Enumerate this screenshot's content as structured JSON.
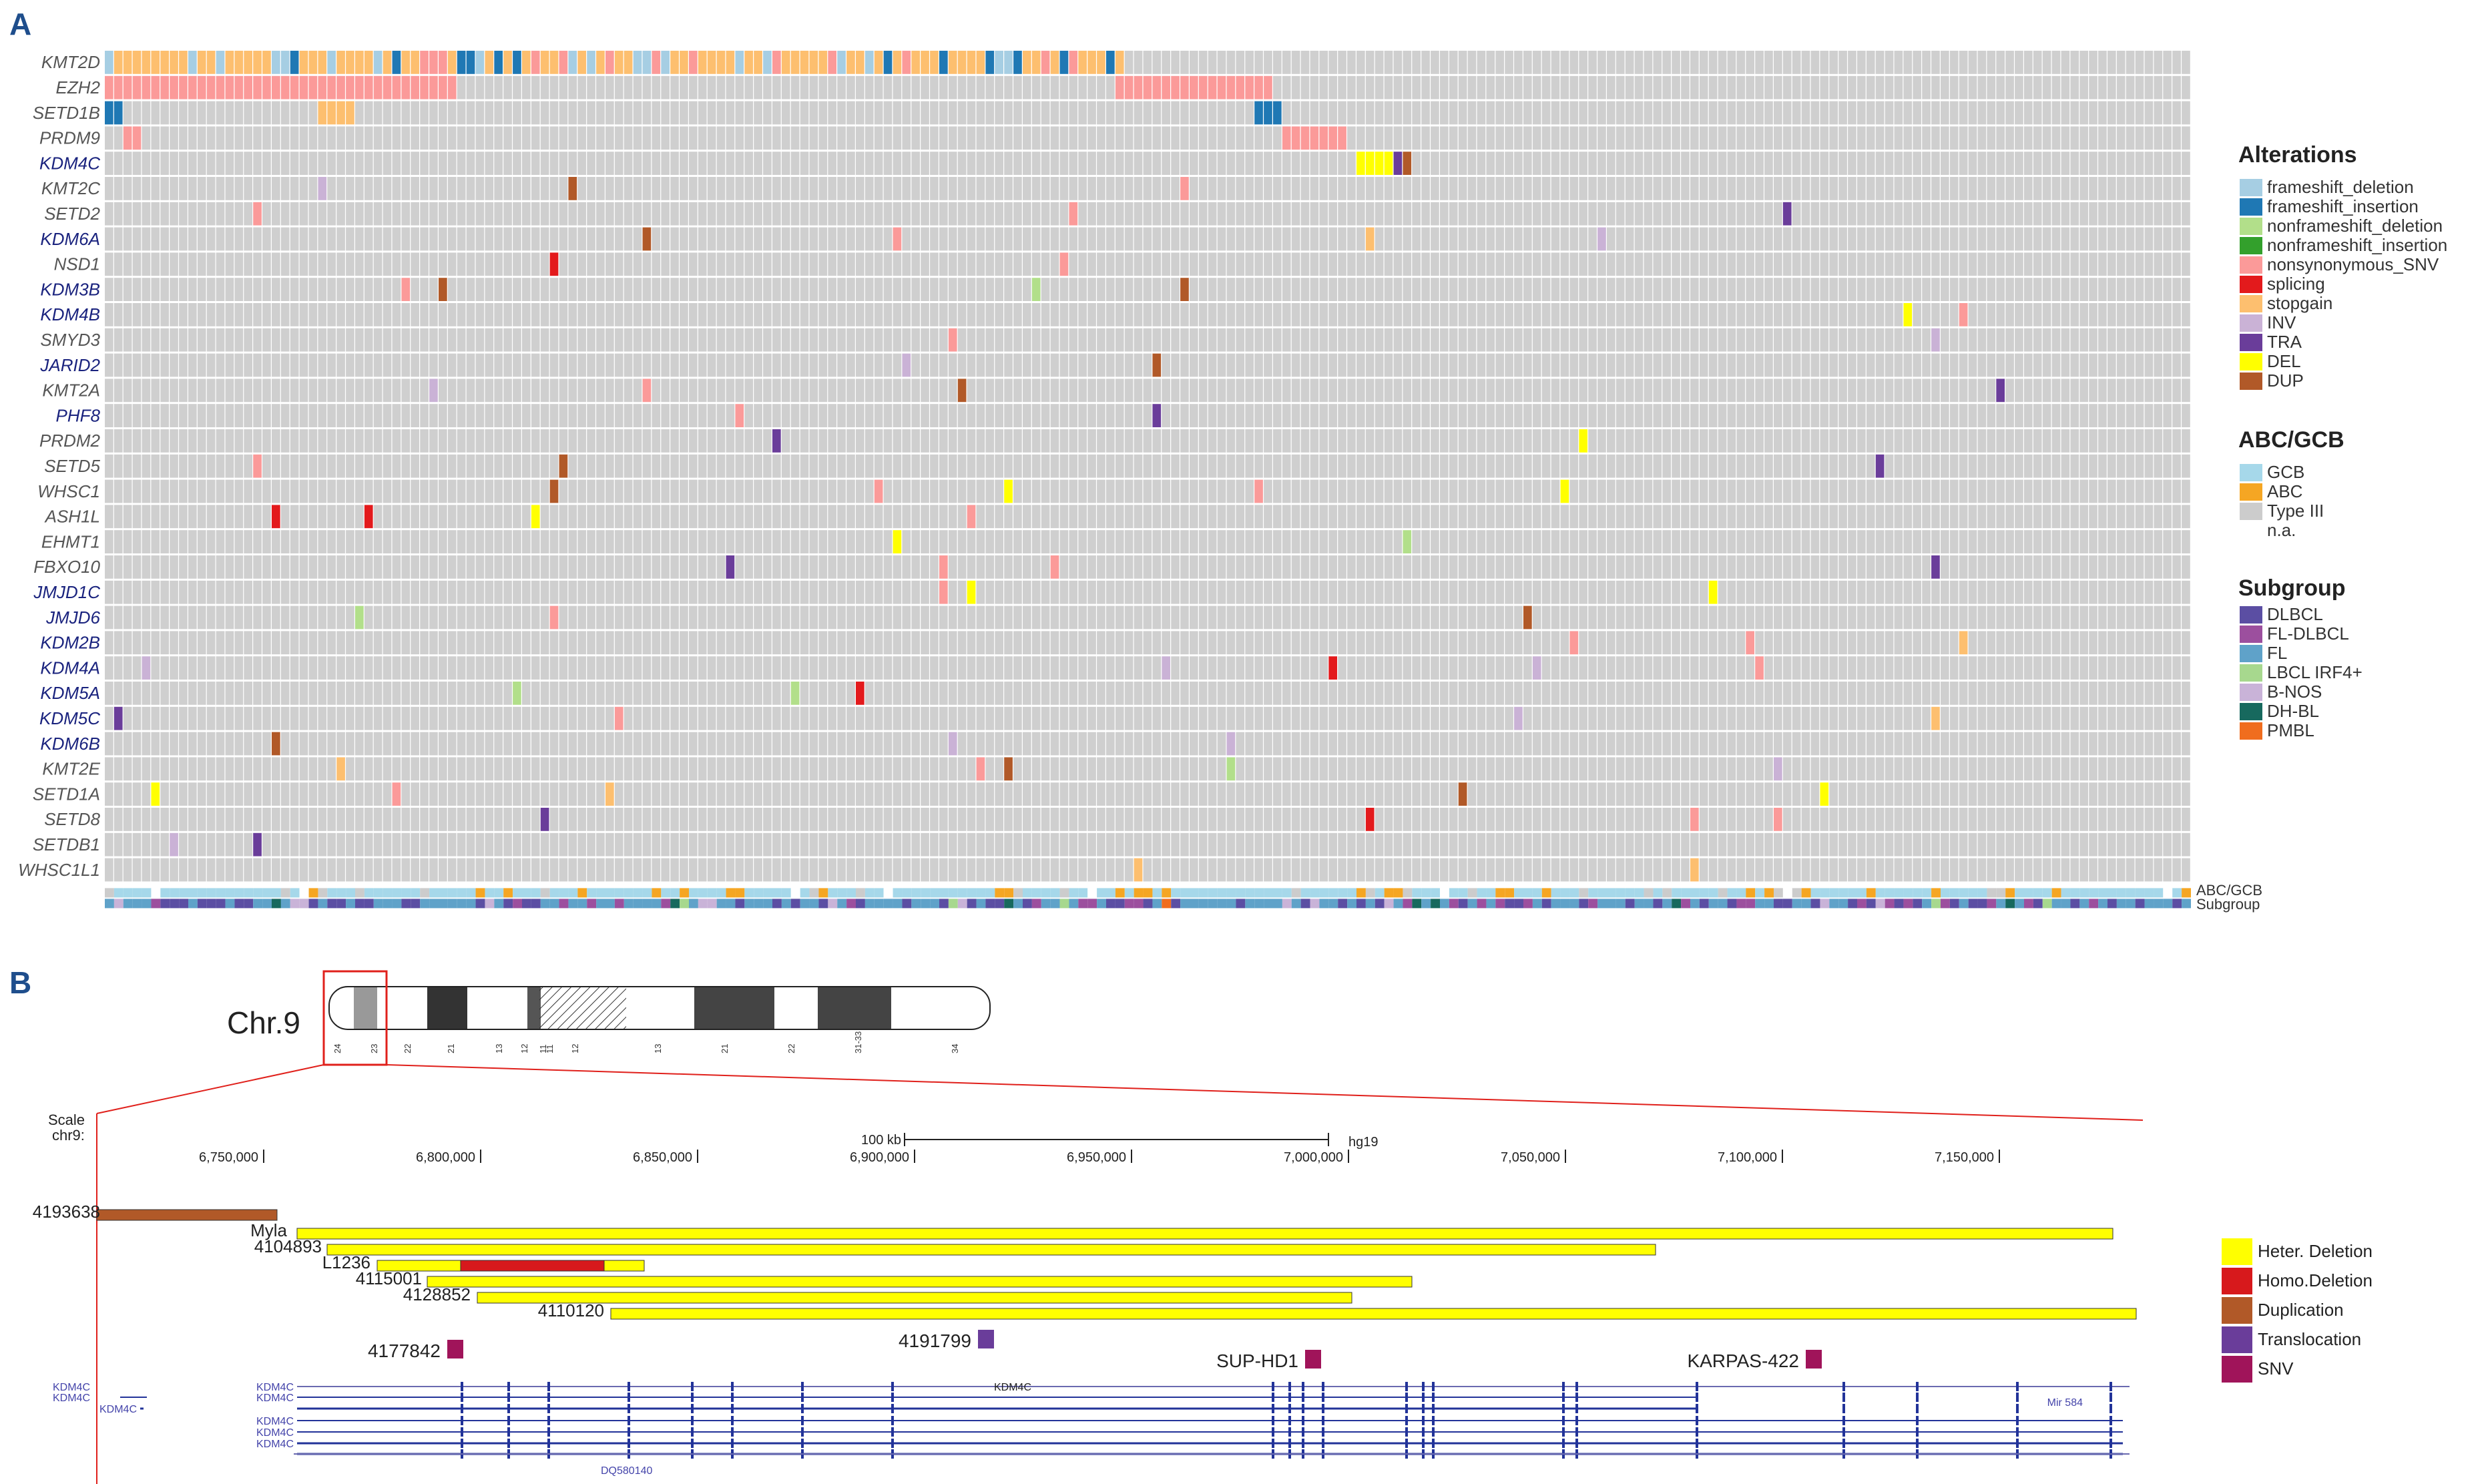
{
  "panel_a_label": "A",
  "panel_b_label": "B",
  "oncoprint": {
    "genes": [
      "KMT2D",
      "EZH2",
      "SETD1B",
      "PRDM9",
      "KDM4C",
      "KMT2C",
      "SETD2",
      "KDM6A",
      "NSD1",
      "KDM3B",
      "KDM4B",
      "SMYD3",
      "JARID2",
      "KMT2A",
      "PHF8",
      "PRDM2",
      "SETD5",
      "WHSC1",
      "ASH1L",
      "EHMT1",
      "FBXO10",
      "JMJD1C",
      "JMJD6",
      "KDM2B",
      "KDM4A",
      "KDM5A",
      "KDM5C",
      "KDM6B",
      "KMT2E",
      "SETD1A",
      "SETD8",
      "SETDB1",
      "WHSC1L1"
    ],
    "gene_colors": [
      "#555",
      "#555",
      "#555",
      "#555",
      "#1a237e",
      "#555",
      "#555",
      "#1a237e",
      "#555",
      "#1a237e",
      "#1a237e",
      "#555",
      "#1a237e",
      "#555",
      "#1a237e",
      "#555",
      "#555",
      "#555",
      "#555",
      "#555",
      "#555",
      "#1a237e",
      "#1a237e",
      "#1a237e",
      "#1a237e",
      "#1a237e",
      "#1a237e",
      "#1a237e",
      "#555",
      "#555",
      "#555",
      "#555",
      "#555"
    ],
    "track_labels": [
      "ABC/GCB",
      "Subgroup"
    ]
  },
  "legends": {
    "alterations": {
      "title": "Alterations",
      "items": [
        {
          "label": "frameshift_deletion",
          "color": "#a6cee3"
        },
        {
          "label": "frameshift_insertion",
          "color": "#1f78b4"
        },
        {
          "label": "nonframeshift_deletion",
          "color": "#b2df8a"
        },
        {
          "label": "nonframeshift_insertion",
          "color": "#33a02c"
        },
        {
          "label": "nonsynonymous_SNV",
          "color": "#fb9a99"
        },
        {
          "label": "splicing",
          "color": "#e31a1c"
        },
        {
          "label": "stopgain",
          "color": "#fdbf6f"
        },
        {
          "label": "INV",
          "color": "#cab2d6"
        },
        {
          "label": "TRA",
          "color": "#6a3d9a"
        },
        {
          "label": "DEL",
          "color": "#ffff00"
        },
        {
          "label": "DUP",
          "color": "#b15928"
        }
      ]
    },
    "abc_gcb": {
      "title": "ABC/GCB",
      "items": [
        {
          "label": "GCB",
          "color": "#a6d8ea"
        },
        {
          "label": "ABC",
          "color": "#f5a623"
        },
        {
          "label": "Type III",
          "color": "#cccccc"
        },
        {
          "label": "n.a.",
          "color": ""
        }
      ]
    },
    "subgroup": {
      "title": "Subgroup",
      "items": [
        {
          "label": "DLBCL",
          "color": "#5b4ea3"
        },
        {
          "label": "FL-DLBCL",
          "color": "#9c4f9e"
        },
        {
          "label": "FL",
          "color": "#5fa2c9"
        },
        {
          "label": "LBCL IRF4+",
          "color": "#a7d88e"
        },
        {
          "label": "B-NOS",
          "color": "#c9b3d8"
        },
        {
          "label": "DH-BL",
          "color": "#17695e"
        },
        {
          "label": "PMBL",
          "color": "#f06d1e"
        }
      ]
    }
  },
  "chromosome": {
    "name": "Chr.9",
    "bands": [
      "24",
      "23",
      "22",
      "21",
      "13",
      "12",
      "11",
      "11",
      "12",
      "13",
      "21",
      "22",
      "31-33",
      "34"
    ]
  },
  "browser": {
    "scale_label": "Scale",
    "chr_label": "chr9:",
    "scale_bar_label": "100 kb",
    "assembly": "hg19",
    "ticks": [
      "6,750,000",
      "6,800,000",
      "6,850,000",
      "6,900,000",
      "6,950,000",
      "7,000,000",
      "7,050,000",
      "7,100,000",
      "7,150,000"
    ],
    "segments": [
      {
        "label": "4193638",
        "type": "Duplication"
      },
      {
        "label": "Myla",
        "type": "Heter. Deletion"
      },
      {
        "label": "4104893",
        "type": "Heter. Deletion"
      },
      {
        "label": "L1236",
        "type": "Homo.Deletion"
      },
      {
        "label": "4115001",
        "type": "Heter. Deletion"
      },
      {
        "label": "4128852",
        "type": "Heter. Deletion"
      },
      {
        "label": "4110120",
        "type": "Heter. Deletion"
      }
    ],
    "point_events": [
      {
        "label": "4177842",
        "type": "SNV"
      },
      {
        "label": "4191799",
        "type": "Translocation"
      },
      {
        "label": "SUP-HD1",
        "type": "SNV"
      },
      {
        "label": "KARPAS-422",
        "type": "SNV"
      }
    ],
    "gene_labels": [
      "KDM4C",
      "KDM4C",
      "KDM4C",
      "KDM4C",
      "KDM4C",
      "KDM4C",
      "KDM4C",
      "KDM4C",
      "KDM4C",
      "Mir_584",
      "DQ580140"
    ],
    "legend": [
      {
        "label": "Heter. Deletion",
        "color": "#ffff00"
      },
      {
        "label": "Homo.Deletion",
        "color": "#d7191c"
      },
      {
        "label": "Duplication",
        "color": "#b15928"
      },
      {
        "label": "Translocation",
        "color": "#6a3d9a"
      },
      {
        "label": "SNV",
        "color": "#a0145a"
      }
    ]
  }
}
